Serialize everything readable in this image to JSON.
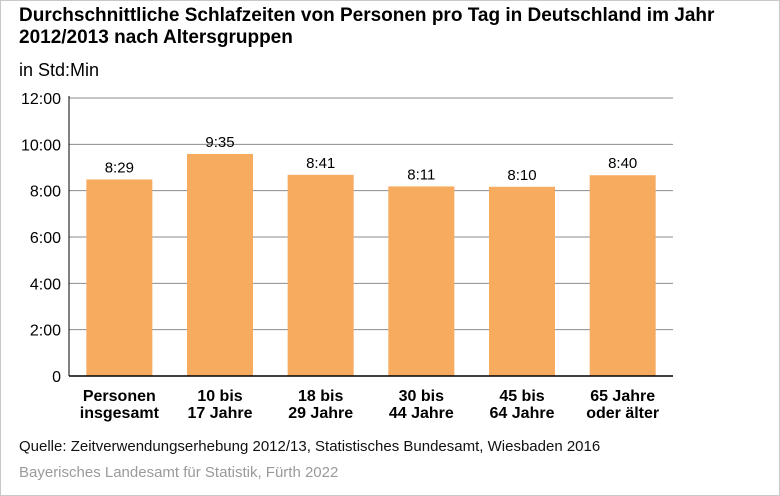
{
  "header": {
    "title": "Durchschnittliche Schlafzeiten von Personen pro Tag in Deutschland im Jahr 2012/2013 nach Altersgruppen",
    "subtitle": "in Std:Min"
  },
  "footer": {
    "source": "Quelle: Zeitverwendungserhebung 2012/13, Statistisches Bundesamt, Wiesbaden 2016",
    "publisher": "Bayerisches Landesamt für Statistik, Fürth 2022"
  },
  "colors": {
    "bar": "#f6ab5f",
    "grid": "#8c8c8c",
    "axis": "#000000"
  },
  "chart_data": {
    "type": "bar",
    "title": "Durchschnittliche Schlafzeiten von Personen pro Tag in Deutschland im Jahr 2012/2013 nach Altersgruppen",
    "subtitle": "in Std:Min",
    "unit": "Std:Min",
    "categories": [
      [
        "Personen",
        "insgesamt"
      ],
      [
        "10 bis",
        "17 Jahre"
      ],
      [
        "18 bis",
        "29 Jahre"
      ],
      [
        "30 bis",
        "44 Jahre"
      ],
      [
        "45 bis",
        "64 Jahre"
      ],
      [
        "65 Jahre",
        "oder älter"
      ]
    ],
    "values": [
      "8:29",
      "9:35",
      "8:41",
      "8:11",
      "8:10",
      "8:40"
    ],
    "y_ticks": [
      "0",
      "2:00",
      "4:00",
      "6:00",
      "8:00",
      "10:00",
      "12:00"
    ],
    "ylim": [
      "0",
      "12:00"
    ],
    "grid": true,
    "legend": "none"
  }
}
